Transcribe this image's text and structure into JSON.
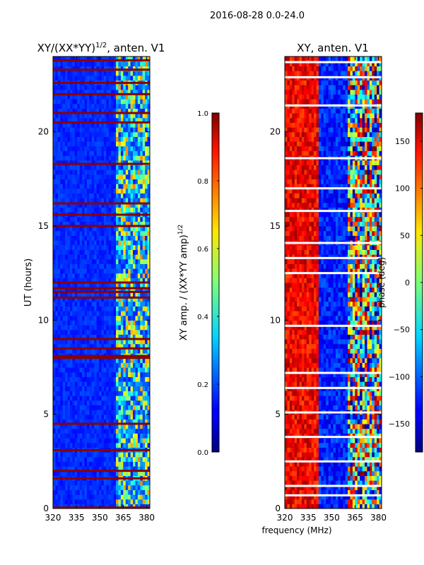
{
  "suptitle": "2016-08-28 0.0-24.0",
  "chart_data": [
    {
      "type": "heatmap",
      "title_main": "XY/(XX*YY)",
      "title_exp": "1/2",
      "title_tail": ", anten. V1",
      "xlabel": "",
      "ylabel": "UT (hours)",
      "xlim": [
        320,
        382
      ],
      "ylim": [
        0,
        24
      ],
      "xticks": [
        320,
        335,
        350,
        365,
        380
      ],
      "yticks": [
        0,
        5,
        10,
        15,
        20
      ],
      "colorbar": {
        "label_main": "XY amp. / (XX*YY amp)",
        "label_exp": "1/2",
        "vmin": 0.0,
        "vmax": 1.0,
        "ticks": [
          "0.0",
          "0.2",
          "0.4",
          "0.6",
          "0.8",
          "1.0"
        ],
        "colormap": "jet"
      },
      "features": {
        "base_low_band_mhz": [
          320,
          361
        ],
        "high_variance_band_mhz": [
          361,
          382
        ],
        "saturated_rows_ut": [
          0.05,
          1.6,
          2.0,
          3.1,
          4.5,
          8.0,
          8.1,
          8.5,
          9.0,
          11.2,
          11.5,
          11.7,
          12.0,
          15.0,
          15.6,
          16.2,
          18.3,
          20.5,
          21.0,
          22.0,
          22.6,
          23.3,
          23.8
        ]
      }
    },
    {
      "type": "heatmap",
      "title_main": "XY, anten. V1",
      "title_exp": "",
      "title_tail": "",
      "xlabel": "frequency (MHz)",
      "ylabel": "",
      "xlim": [
        320,
        382
      ],
      "ylim": [
        0,
        24
      ],
      "xticks": [
        320,
        335,
        350,
        365,
        380
      ],
      "yticks": [
        0,
        5,
        10,
        15,
        20
      ],
      "colorbar": {
        "label_main": "phase (deg)",
        "label_exp": "",
        "vmin": -180,
        "vmax": 180,
        "ticks": [
          "−150",
          "−100",
          "−50",
          "0",
          "50",
          "100",
          "150"
        ],
        "colormap": "jet"
      },
      "features": {
        "red_band_mhz": [
          320,
          342
        ],
        "blue_band_mhz": [
          342,
          361
        ],
        "mixed_band_mhz": [
          361,
          382
        ],
        "white_rows_ut": [
          0.7,
          1.2,
          2.5,
          3.8,
          5.1,
          6.4,
          7.2,
          9.7,
          12.5,
          13.3,
          14.1,
          15.8,
          17.0,
          18.6,
          21.4,
          22.9,
          23.7
        ]
      }
    }
  ]
}
